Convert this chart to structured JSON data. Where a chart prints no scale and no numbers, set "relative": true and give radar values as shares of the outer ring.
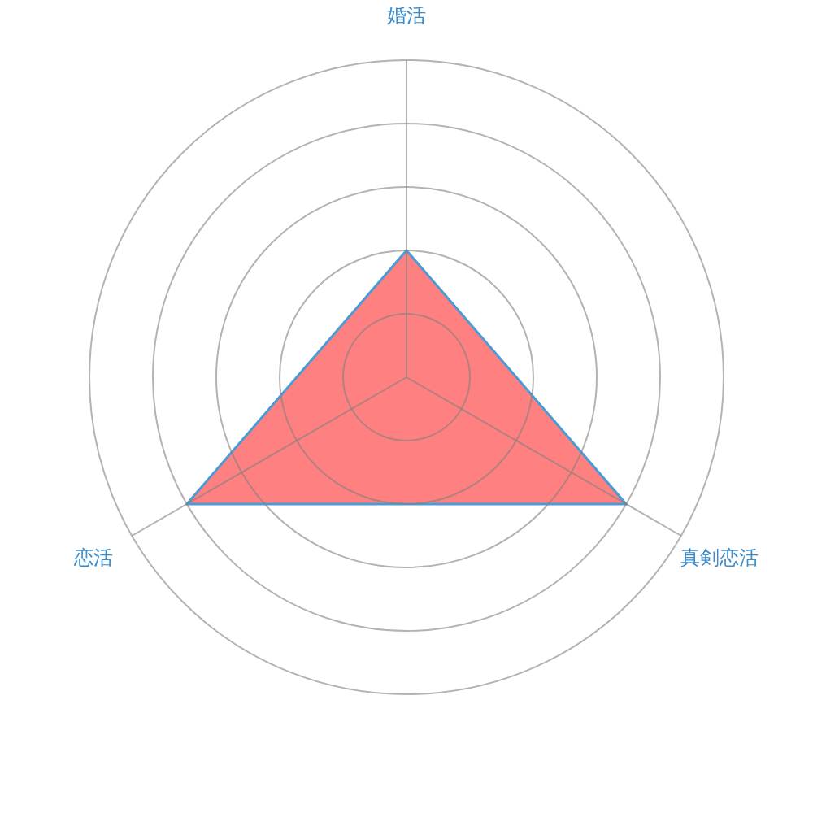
{
  "chart_data": {
    "type": "radar",
    "categories": [
      "婚活",
      "真剣恋活",
      "恋活"
    ],
    "relative": true,
    "grid": true,
    "series": [
      {
        "color": "#ff8080",
        "values": [
          0.4,
          0.8,
          0.8
        ]
      }
    ]
  }
}
